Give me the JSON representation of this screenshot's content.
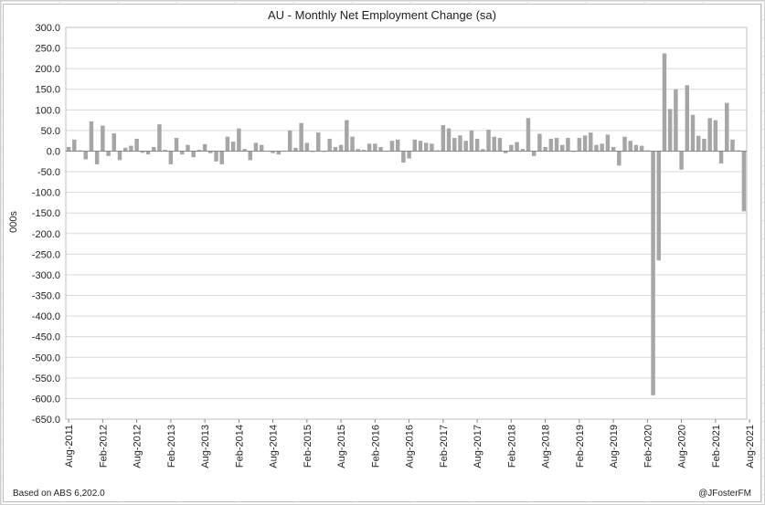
{
  "chart_data": {
    "type": "bar",
    "title": "AU - Monthly Net Employment Change (sa)",
    "ylabel": "000s",
    "xlabel": "",
    "ylim": [
      -650,
      300
    ],
    "y_ticks": [
      "300.0",
      "250.0",
      "200.0",
      "150.0",
      "100.0",
      "50.0",
      "0.0",
      "-50.0",
      "-100.0",
      "-150.0",
      "-200.0",
      "-250.0",
      "-300.0",
      "-350.0",
      "-400.0",
      "-450.0",
      "-500.0",
      "-550.0",
      "-600.0",
      "-650.0"
    ],
    "x_tick_labels": [
      "Aug-2011",
      "Feb-2012",
      "Aug-2012",
      "Feb-2013",
      "Aug-2013",
      "Feb-2014",
      "Aug-2014",
      "Feb-2015",
      "Aug-2015",
      "Feb-2016",
      "Aug-2016",
      "Feb-2017",
      "Aug-2017",
      "Feb-2018",
      "Aug-2018",
      "Feb-2019",
      "Aug-2019",
      "Feb-2020",
      "Aug-2020",
      "Feb-2021",
      "Aug-2021"
    ],
    "series_color": "#a6a6a6",
    "grid": true,
    "legend": "none",
    "x_start": "Aug-2011",
    "values": [
      10,
      28,
      2,
      -20,
      72,
      -32,
      62,
      -12,
      43,
      -22,
      8,
      13,
      30,
      -4,
      -8,
      10,
      65,
      3,
      -32,
      32,
      -8,
      15,
      -15,
      3,
      17,
      -5,
      -25,
      -32,
      35,
      23,
      55,
      5,
      -22,
      20,
      15,
      0,
      -5,
      -8,
      0,
      50,
      8,
      68,
      20,
      -2,
      45,
      -2,
      30,
      10,
      15,
      75,
      35,
      5,
      3,
      18,
      18,
      10,
      0,
      25,
      28,
      -28,
      -18,
      28,
      25,
      20,
      18,
      2,
      63,
      55,
      32,
      38,
      25,
      50,
      30,
      5,
      52,
      35,
      32,
      -5,
      15,
      22,
      5,
      80,
      -12,
      42,
      10,
      30,
      32,
      15,
      32,
      -2,
      32,
      38,
      45,
      15,
      18,
      40,
      10,
      -35,
      35,
      25,
      15,
      13,
      2,
      -592,
      -265,
      237,
      102,
      150,
      -45,
      160,
      88,
      37,
      30,
      80,
      75,
      -30,
      117,
      28,
      2,
      -146
    ],
    "footnote_left": "Based on ABS 6,202.0",
    "footnote_right": "@JFosterFM"
  }
}
